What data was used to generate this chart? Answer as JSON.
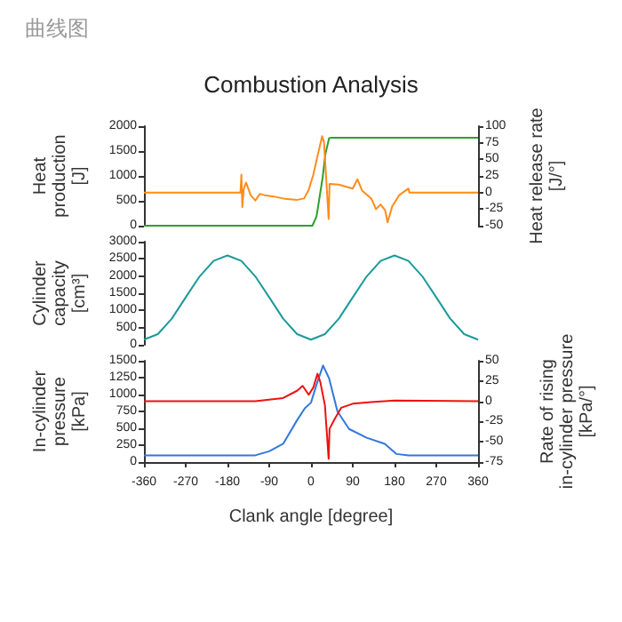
{
  "chart_data": [
    {
      "type": "line",
      "title": "Combustion Analysis",
      "annotations": [
        "曲线图"
      ],
      "ylabel": "Heat\nproduction\n[J]",
      "y2label": "Heat release rate\n[J/°]",
      "xlim": [
        -360,
        360
      ],
      "xticks": [
        -360,
        -270,
        -180,
        -90,
        0,
        90,
        180,
        270,
        360
      ],
      "ylim": [
        0,
        2000
      ],
      "yticks": [
        0,
        500,
        1000,
        1500,
        2000
      ],
      "y2lim": [
        -50,
        100
      ],
      "y2ticks": [
        -50,
        -25,
        0,
        25,
        50,
        75,
        100
      ],
      "tick_labels": "y",
      "marker": "none",
      "series": [
        {
          "color": "#2ca02c",
          "x": [
            -360,
            3,
            12,
            25,
            31,
            39,
            45,
            360
          ],
          "values": [
            0,
            0,
            190,
            960,
            1440,
            1760,
            1770,
            1770
          ]
        },
        {
          "color": "#ff8c1a",
          "axis": "y2",
          "x": [
            -360,
            -152,
            -150,
            -148,
            -145,
            -140,
            -130,
            -120,
            -110,
            -100,
            -80,
            -60,
            -30,
            -15,
            -5,
            5,
            15,
            24,
            28,
            33,
            38,
            40,
            60,
            90,
            100,
            110,
            130,
            140,
            150,
            160,
            165,
            175,
            190,
            210,
            212,
            360
          ],
          "values": [
            0,
            0,
            27,
            -22,
            5,
            15,
            -4,
            -12,
            -2,
            -4,
            -6,
            -9,
            -11,
            -9,
            4,
            27,
            58,
            85,
            76,
            18,
            -40,
            13,
            12,
            6,
            20,
            3,
            -9,
            -25,
            -18,
            -27,
            -45,
            -21,
            -4,
            6,
            0,
            0
          ]
        }
      ]
    },
    {
      "type": "line",
      "ylabel": "Cylinder\ncapacity\n[cm³]",
      "xlim": [
        -360,
        360
      ],
      "xticks": [
        -360,
        -270,
        -180,
        -90,
        0,
        90,
        180,
        270,
        360
      ],
      "ylim": [
        0,
        3000
      ],
      "yticks": [
        0,
        500,
        1000,
        1500,
        2000,
        2500,
        3000
      ],
      "tick_labels": "y",
      "marker": "none",
      "series": [
        {
          "color": "#1a9a9a",
          "x": [
            -360,
            -330,
            -300,
            -270,
            -240,
            -210,
            -180,
            -150,
            -120,
            -90,
            -60,
            -30,
            0,
            30,
            60,
            90,
            120,
            150,
            180,
            210,
            240,
            270,
            300,
            330,
            360
          ],
          "values": [
            150,
            310,
            760,
            1380,
            1990,
            2440,
            2600,
            2440,
            1990,
            1380,
            760,
            310,
            150,
            310,
            760,
            1380,
            1990,
            2440,
            2600,
            2440,
            1990,
            1380,
            760,
            310,
            150
          ]
        }
      ]
    },
    {
      "type": "line",
      "xlabel": "Clank angle [degree]",
      "ylabel": "In-cylinder\npressure\n[kPa]",
      "y2label": "Rate of rising\nin-cylinder pressure\n[kPa/°]",
      "xlim": [
        -360,
        360
      ],
      "xticks": [
        -360,
        -270,
        -180,
        -90,
        0,
        90,
        180,
        270,
        360
      ],
      "ylim": [
        0,
        1500
      ],
      "yticks": [
        0,
        250,
        500,
        750,
        1000,
        1250,
        1500
      ],
      "y2lim": [
        -75,
        50
      ],
      "y2ticks": [
        -75,
        -50,
        -25,
        0,
        25,
        50
      ],
      "marker": "none",
      "series": [
        {
          "color": "#3377dd",
          "x": [
            -360,
            -120,
            -90,
            -60,
            -30,
            -13,
            0,
            12,
            26,
            39,
            57,
            82,
            120,
            159,
            184,
            210,
            360
          ],
          "values": [
            100,
            100,
            160,
            270,
            620,
            800,
            880,
            1150,
            1430,
            1240,
            750,
            490,
            360,
            270,
            120,
            100,
            100
          ]
        },
        {
          "color": "#ee1111",
          "axis": "y2",
          "x": [
            -360,
            -120,
            -60,
            -30,
            -18,
            -5,
            5,
            14,
            20,
            30,
            38,
            40,
            50,
            65,
            90,
            130,
            180,
            360
          ],
          "values": [
            0,
            0,
            4,
            13,
            19,
            8,
            17,
            34,
            24,
            -5,
            -71,
            -34,
            -23,
            -8,
            -3,
            -1,
            1,
            0
          ]
        }
      ]
    }
  ]
}
